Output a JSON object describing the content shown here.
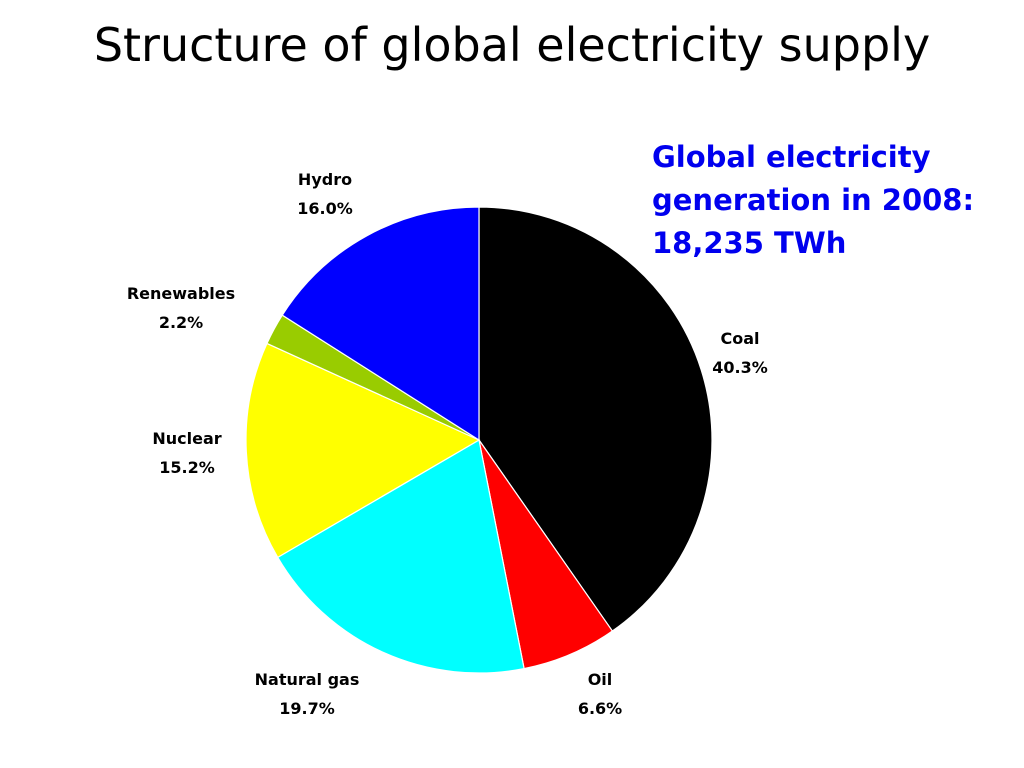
{
  "slide": {
    "title": "Structure of global electricity supply"
  },
  "annotation": {
    "lines": [
      "Global electricity",
      "generation in 2008:",
      "18,235 TWh"
    ],
    "color": "#0000ee"
  },
  "chart_data": {
    "type": "pie",
    "title": "",
    "slices": [
      {
        "name": "Coal",
        "value": 40.3,
        "label": "40.3%",
        "color": "#000000"
      },
      {
        "name": "Oil",
        "value": 6.6,
        "label": "6.6%",
        "color": "#ff0000"
      },
      {
        "name": "Natural gas",
        "value": 19.7,
        "label": "19.7%",
        "color": "#00ffff"
      },
      {
        "name": "Nuclear",
        "value": 15.2,
        "label": "15.2%",
        "color": "#ffff00"
      },
      {
        "name": "Renewables",
        "value": 2.2,
        "label": "2.2%",
        "color": "#99cc00"
      },
      {
        "name": "Hydro",
        "value": 16.0,
        "label": "16.0%",
        "color": "#0000ff"
      }
    ],
    "start_angle": "12 o'clock",
    "direction": "clockwise",
    "legend": "none"
  }
}
